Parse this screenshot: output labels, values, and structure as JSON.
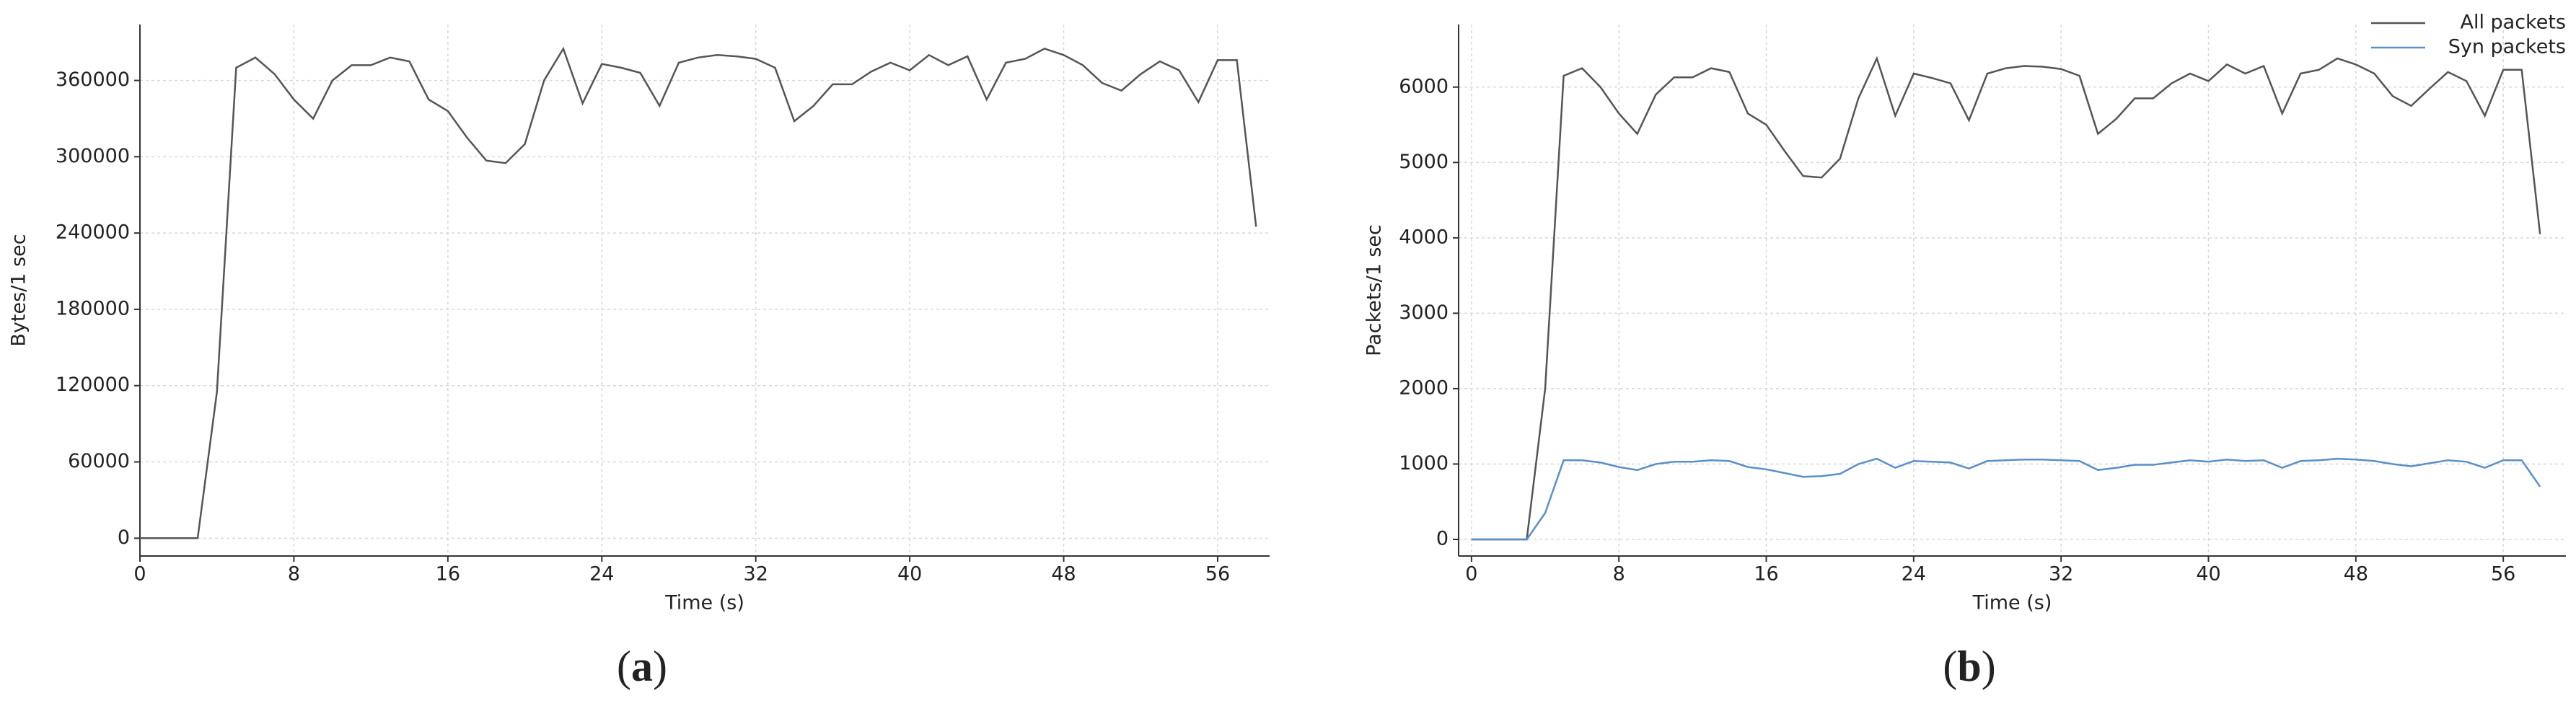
{
  "chart_data": [
    {
      "type": "line",
      "caption": "(a)",
      "caption_bold": "a",
      "x_label": "Time (s)",
      "y_label": "Bytes/1 sec",
      "x": [
        0,
        1,
        2,
        3,
        4,
        5,
        6,
        7,
        8,
        9,
        10,
        11,
        12,
        13,
        14,
        15,
        16,
        17,
        18,
        19,
        20,
        21,
        22,
        23,
        24,
        25,
        26,
        27,
        28,
        29,
        30,
        31,
        32,
        33,
        34,
        35,
        36,
        37,
        38,
        39,
        40,
        41,
        42,
        43,
        44,
        45,
        46,
        47,
        48,
        49,
        50,
        51,
        52,
        53,
        54,
        55,
        56,
        57,
        58
      ],
      "values": [
        0,
        0,
        0,
        0,
        115000,
        370000,
        378000,
        365000,
        345000,
        330000,
        360000,
        372000,
        372000,
        378000,
        375000,
        345000,
        336000,
        315000,
        297000,
        295000,
        310000,
        360000,
        385000,
        342000,
        373000,
        370000,
        366000,
        340000,
        374000,
        378000,
        380000,
        379000,
        377000,
        370000,
        328000,
        340000,
        357000,
        357000,
        367000,
        374000,
        368000,
        380000,
        372000,
        379000,
        345000,
        374000,
        377000,
        385000,
        380000,
        372000,
        358000,
        352000,
        365000,
        375000,
        368000,
        343000,
        376000,
        376000,
        245000
      ],
      "color": "#555555",
      "xlim": [
        0,
        58.7
      ],
      "xticks": [
        0,
        8,
        16,
        24,
        32,
        40,
        48,
        56
      ],
      "ylim": [
        -14000,
        404000
      ],
      "yticks": [
        0,
        60000,
        120000,
        180000,
        240000,
        300000,
        360000
      ],
      "grid": true
    },
    {
      "type": "line",
      "caption": "(b)",
      "caption_bold": "b",
      "x_label": "Time (s)",
      "y_label": "Packets/1 sec",
      "x": [
        0,
        1,
        2,
        3,
        4,
        5,
        6,
        7,
        8,
        9,
        10,
        11,
        12,
        13,
        14,
        15,
        16,
        17,
        18,
        19,
        20,
        21,
        22,
        23,
        24,
        25,
        26,
        27,
        28,
        29,
        30,
        31,
        32,
        33,
        34,
        35,
        36,
        37,
        38,
        39,
        40,
        41,
        42,
        43,
        44,
        45,
        46,
        47,
        48,
        49,
        50,
        51,
        52,
        53,
        54,
        55,
        56,
        57,
        58
      ],
      "series": [
        {
          "name": "All packets",
          "color": "#555555",
          "values": [
            0,
            0,
            0,
            0,
            2000,
            6150,
            6250,
            6000,
            5650,
            5380,
            5900,
            6130,
            6130,
            6250,
            6200,
            5650,
            5500,
            5150,
            4820,
            4800,
            5050,
            5850,
            6380,
            5620,
            6180,
            6120,
            6050,
            5560,
            6180,
            6250,
            6280,
            6270,
            6240,
            6150,
            5380,
            5580,
            5850,
            5850,
            6050,
            6180,
            6080,
            6300,
            6180,
            6280,
            5650,
            6180,
            6230,
            6380,
            6300,
            6180,
            5880,
            5750,
            5980,
            6200,
            6080,
            5620,
            6230,
            6230,
            4050
          ]
        },
        {
          "name": "Syn packets",
          "color": "#5b8fc7",
          "values": [
            0,
            0,
            0,
            0,
            350,
            1050,
            1050,
            1020,
            960,
            920,
            1000,
            1030,
            1030,
            1050,
            1040,
            960,
            930,
            880,
            830,
            840,
            870,
            1000,
            1070,
            950,
            1040,
            1030,
            1020,
            940,
            1040,
            1050,
            1060,
            1060,
            1050,
            1040,
            920,
            950,
            990,
            990,
            1020,
            1050,
            1030,
            1060,
            1040,
            1050,
            950,
            1040,
            1050,
            1070,
            1060,
            1040,
            1000,
            970,
            1010,
            1050,
            1030,
            950,
            1050,
            1050,
            700
          ]
        }
      ],
      "legend": "upper right",
      "xlim": [
        -0.7,
        59.4
      ],
      "xticks": [
        0,
        8,
        16,
        24,
        32,
        40,
        48,
        56
      ],
      "ylim": [
        -220,
        6830
      ],
      "yticks": [
        0,
        1000,
        2000,
        3000,
        4000,
        5000,
        6000
      ],
      "grid": true
    }
  ]
}
